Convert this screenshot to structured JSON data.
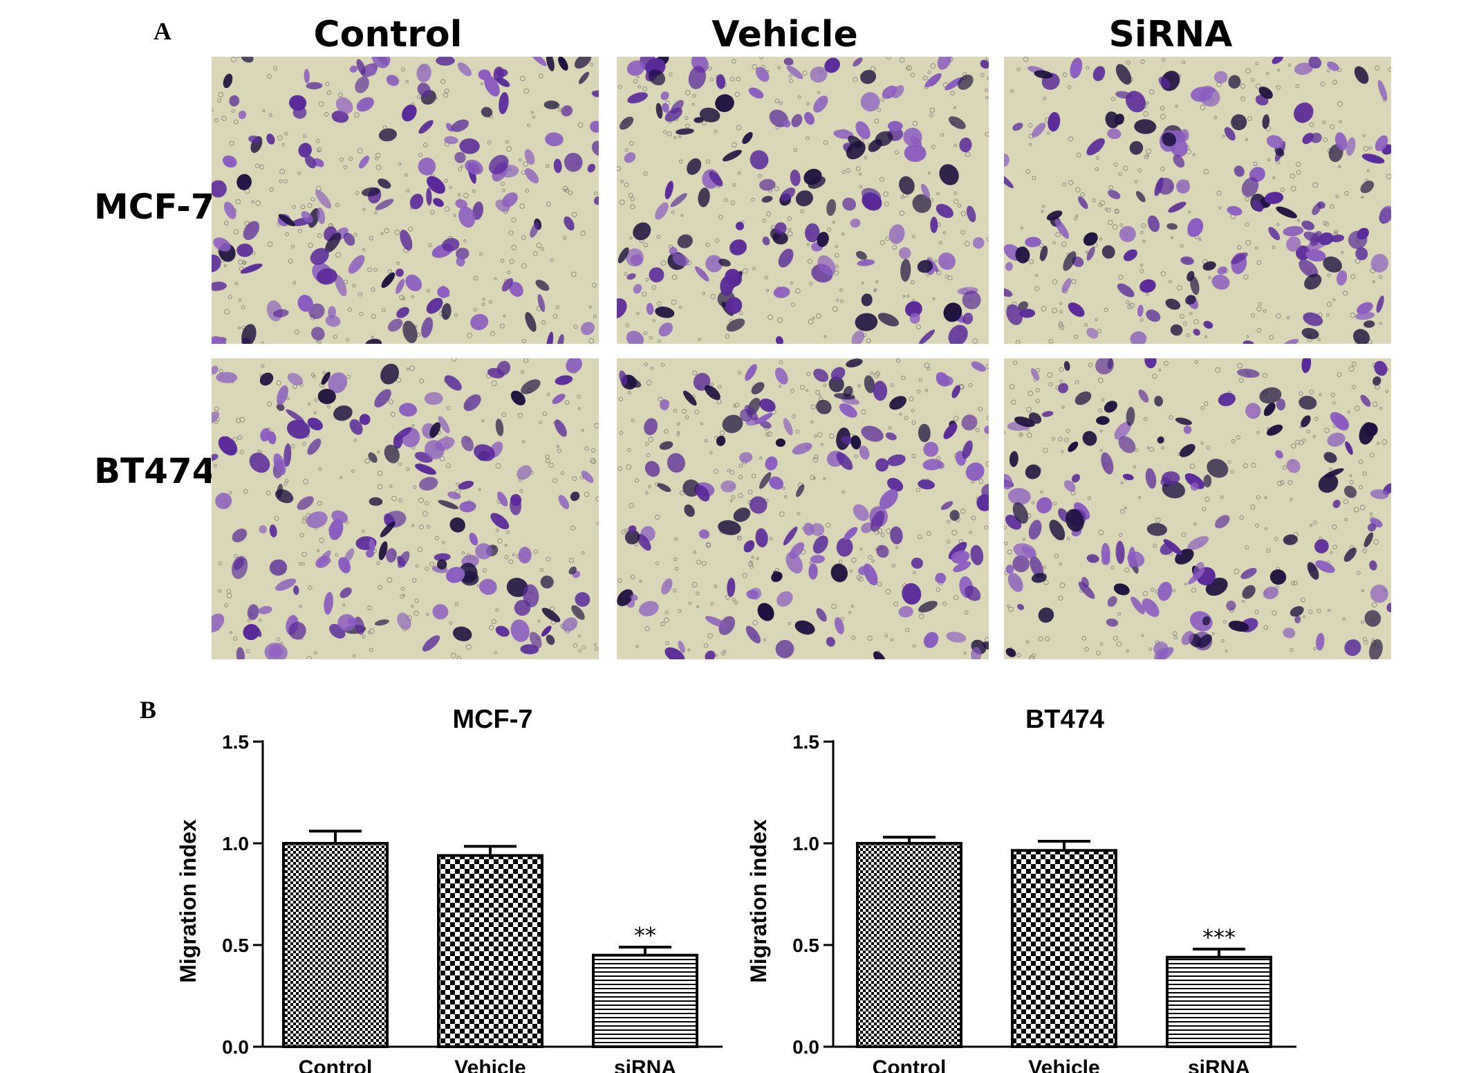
{
  "panel_a": {
    "letter": "A",
    "columns": [
      "Control",
      "Vehicle",
      "SiRNA"
    ],
    "rows": [
      "MCF-7",
      "BT474"
    ],
    "stain_color": "#5a2a9a",
    "background_color": "#d9d7b6"
  },
  "panel_b": {
    "letter": "B"
  },
  "chart_data": [
    {
      "type": "bar",
      "title": "MCF-7",
      "ylabel": "Migration index",
      "xlabel": "",
      "categories": [
        "Control",
        "Vehicle",
        "siRNA"
      ],
      "values": [
        1.0,
        0.94,
        0.45
      ],
      "errors": [
        0.06,
        0.045,
        0.04
      ],
      "annotations": [
        "",
        "",
        "**"
      ],
      "patterns": [
        "fine-checker",
        "coarse-checker",
        "horizontal-lines"
      ],
      "ylim": [
        0,
        1.5
      ],
      "yticks": [
        "0.0",
        "0.5",
        "1.0",
        "1.5"
      ],
      "grid": false
    },
    {
      "type": "bar",
      "title": "BT474",
      "ylabel": "Migration index",
      "xlabel": "",
      "categories": [
        "Control",
        "Vehicle",
        "siRNA"
      ],
      "values": [
        1.0,
        0.965,
        0.44
      ],
      "errors": [
        0.03,
        0.045,
        0.04
      ],
      "annotations": [
        "",
        "",
        "***"
      ],
      "patterns": [
        "fine-checker",
        "coarse-checker",
        "horizontal-lines"
      ],
      "ylim": [
        0,
        1.5
      ],
      "yticks": [
        "0.0",
        "0.5",
        "1.0",
        "1.5"
      ],
      "grid": false
    }
  ]
}
